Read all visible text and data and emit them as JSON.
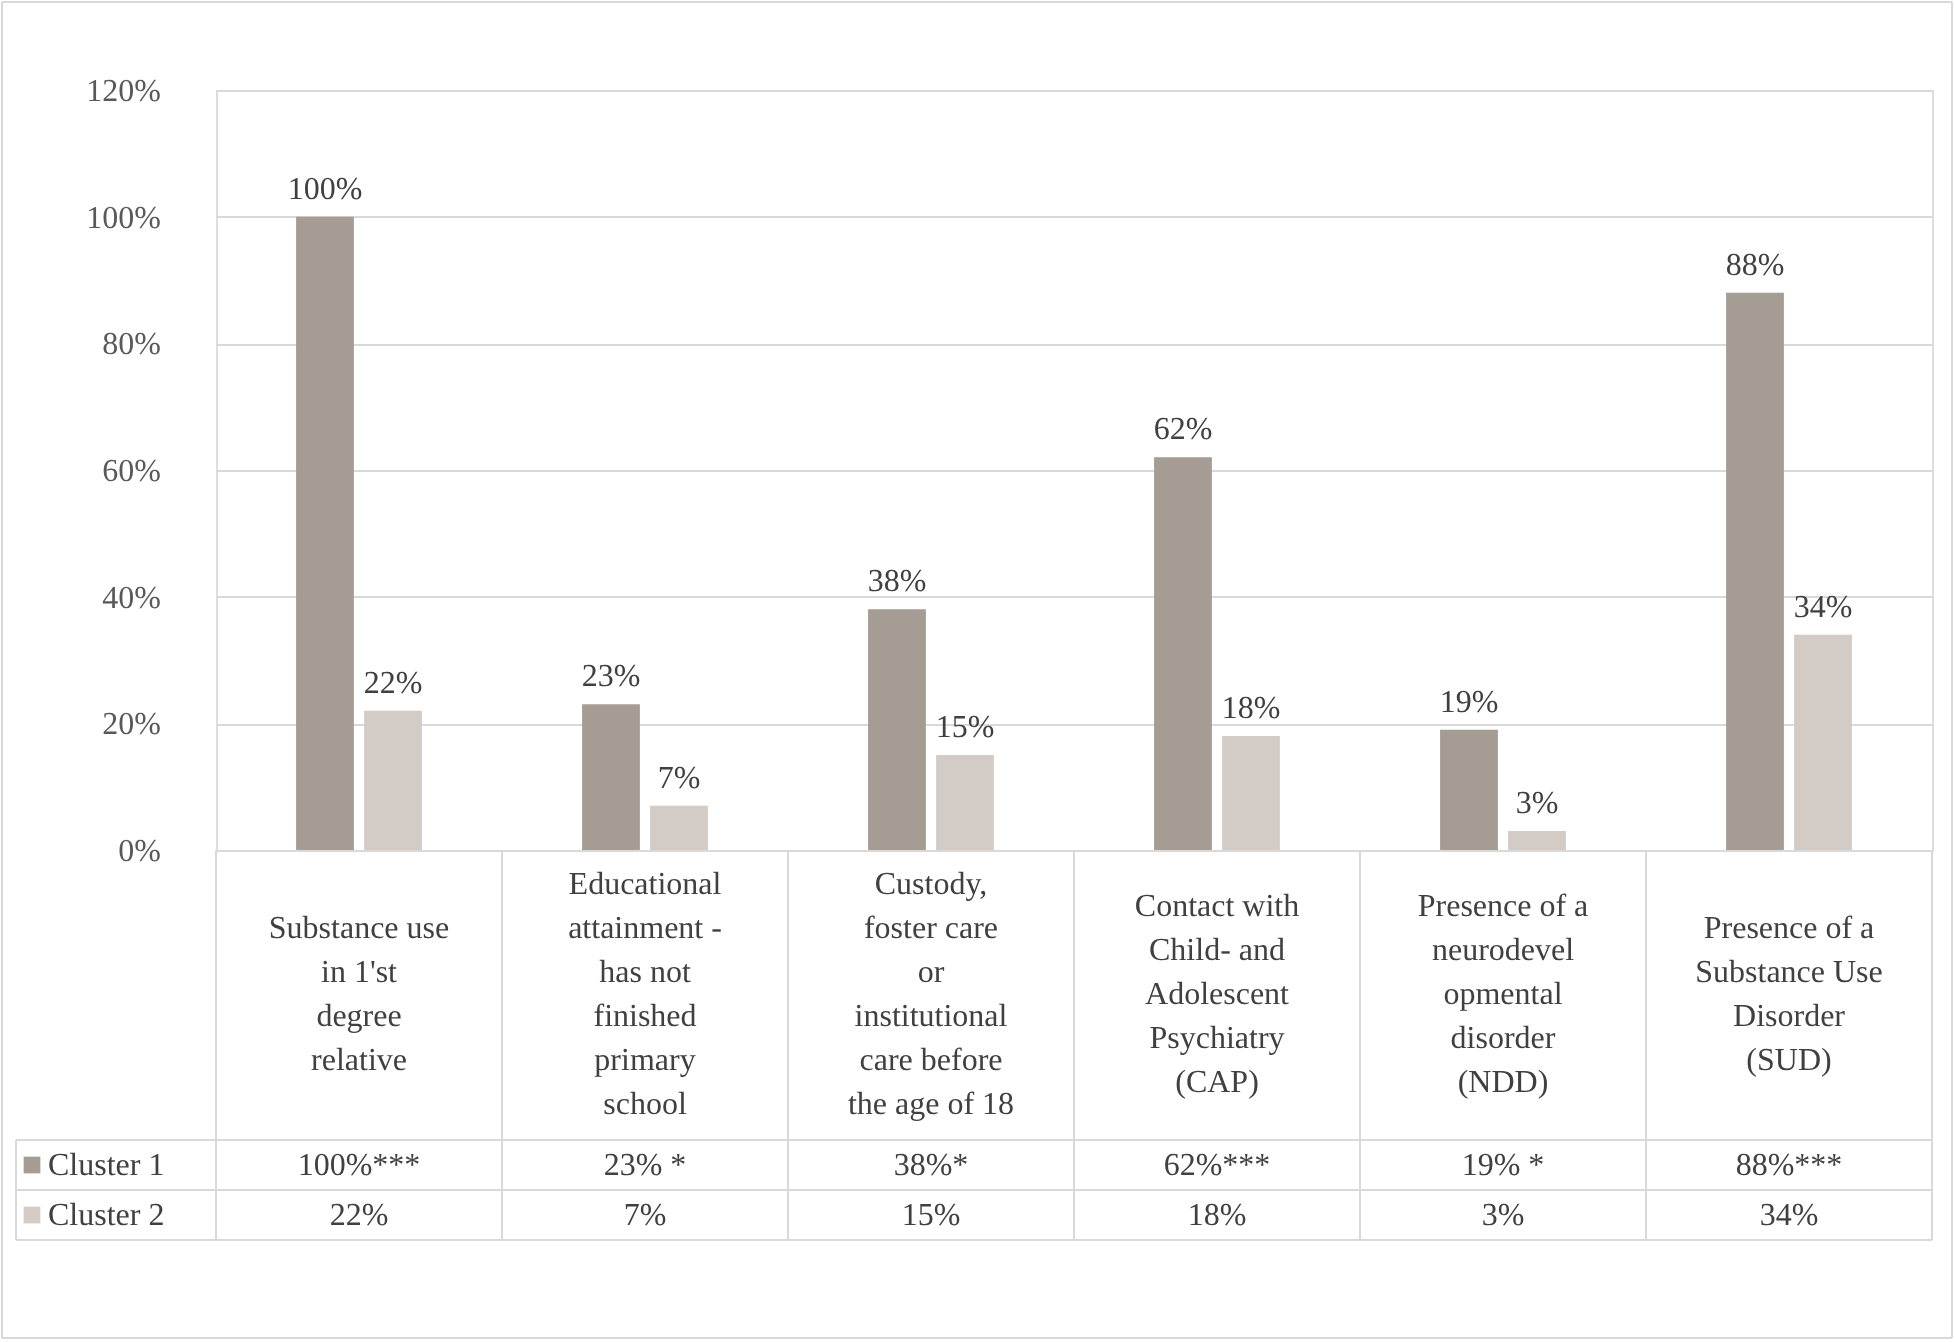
{
  "chart_data": {
    "type": "bar",
    "categories": [
      "Substance use in 1'st degree relative",
      "Educational attainment - has not finished primary school",
      "Custody, foster care or institutional care before the age of 18",
      "Contact with Child- and Adolescent Psychiatry (CAP)",
      "Presence of a neurodevelopmental disorder (NDD)",
      "Presence of a Substance Use Disorder (SUD)"
    ],
    "series": [
      {
        "name": "Cluster 1",
        "color": "#a59d94",
        "values": [
          100,
          23,
          38,
          62,
          19,
          88
        ],
        "value_labels": [
          "100%",
          "23%",
          "38%",
          "62%",
          "19%",
          "88%"
        ]
      },
      {
        "name": "Cluster 2",
        "color": "#d3cbc6",
        "values": [
          22,
          7,
          15,
          18,
          3,
          34
        ],
        "value_labels": [
          "22%",
          "7%",
          "15%",
          "18%",
          "3%",
          "34%"
        ]
      }
    ],
    "annotations": [
      "100%***",
      "23% *",
      "38%*",
      "62%***",
      "19% *",
      "88%***",
      "22%",
      "7%",
      "15%",
      "18%",
      "3%",
      "34%"
    ],
    "ylim": [
      0,
      120
    ],
    "yticks": [
      {
        "value": 0,
        "label": "0%"
      },
      {
        "value": 20,
        "label": "20%"
      },
      {
        "value": 40,
        "label": "40%"
      },
      {
        "value": 60,
        "label": "60%"
      },
      {
        "value": 80,
        "label": "80%"
      },
      {
        "value": 100,
        "label": "100%"
      },
      {
        "value": 120,
        "label": "120%"
      }
    ],
    "grid": "y",
    "legend": "bottom"
  }
}
